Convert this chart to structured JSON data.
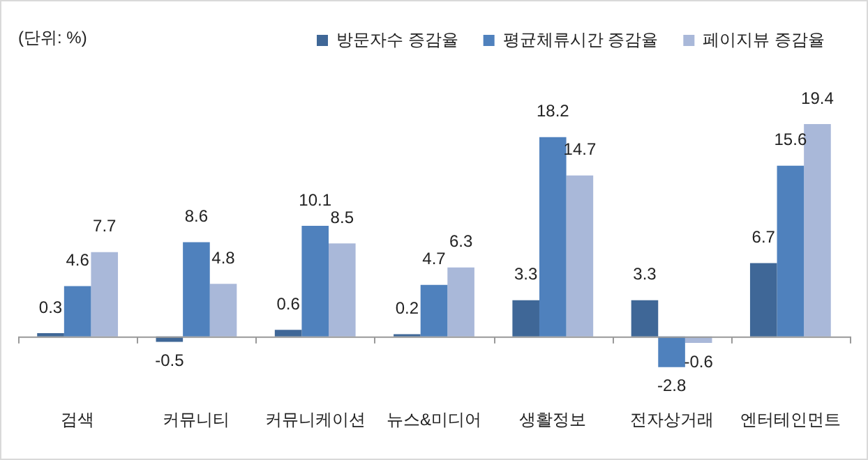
{
  "chart_data": {
    "type": "bar",
    "annotations": [
      "(단위: %)"
    ],
    "categories": [
      "검색",
      "커뮤니티",
      "커뮤니케이션",
      "뉴스&미디어",
      "생활정보",
      "전자상거래",
      "엔터테인먼트"
    ],
    "series": [
      {
        "name": "방문자수 증감율",
        "color": "#3f6797",
        "values": [
          0.3,
          -0.5,
          0.6,
          0.2,
          3.3,
          3.3,
          6.7
        ]
      },
      {
        "name": "평균체류시간 증감율",
        "color": "#4f81bd",
        "values": [
          4.6,
          8.6,
          10.1,
          4.7,
          18.2,
          -2.8,
          15.6
        ]
      },
      {
        "name": "페이지뷰 증감율",
        "color": "#a9b8d9",
        "values": [
          7.7,
          4.8,
          8.5,
          6.3,
          14.7,
          -0.6,
          19.4
        ]
      }
    ],
    "data_labels": true,
    "legend": "top right",
    "grid": false
  }
}
